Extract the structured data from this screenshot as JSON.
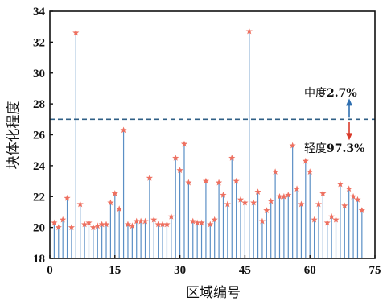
{
  "chart_data": {
    "type": "scatter",
    "style": "stem",
    "xlabel": "区域编号",
    "ylabel": "块体化程度",
    "xlim": [
      0,
      75
    ],
    "ylim": [
      18,
      34
    ],
    "xticks": [
      0,
      15,
      30,
      45,
      60,
      75
    ],
    "yticks": [
      18,
      20,
      22,
      24,
      26,
      28,
      30,
      32,
      34
    ],
    "grid": false,
    "threshold": 27.0,
    "marker": "star",
    "colors": {
      "stem": "#5b8fc5",
      "marker": "#ee7060",
      "threshold": "#2f5f86",
      "arrow_up": "#2f6fb0",
      "arrow_down": "#d93a2a"
    },
    "annotations": {
      "upper": {
        "prefix": "中度",
        "value": "2.7%"
      },
      "lower": {
        "prefix": "轻度",
        "value": "97.3%"
      }
    },
    "x": [
      1,
      2,
      3,
      4,
      5,
      6,
      7,
      8,
      9,
      10,
      11,
      12,
      13,
      14,
      15,
      16,
      17,
      18,
      19,
      20,
      21,
      22,
      23,
      24,
      25,
      26,
      27,
      28,
      29,
      30,
      31,
      32,
      33,
      34,
      35,
      36,
      37,
      38,
      39,
      40,
      41,
      42,
      43,
      44,
      45,
      46,
      47,
      48,
      49,
      50,
      51,
      52,
      53,
      54,
      55,
      56,
      57,
      58,
      59,
      60,
      61,
      62,
      63,
      64,
      65,
      66,
      67,
      68,
      69,
      70,
      71,
      72
    ],
    "y": [
      20.3,
      20.0,
      20.5,
      21.9,
      20.0,
      32.6,
      21.5,
      20.2,
      20.3,
      20.0,
      20.1,
      20.2,
      20.2,
      21.6,
      22.2,
      21.2,
      26.3,
      20.2,
      20.1,
      20.4,
      20.4,
      20.4,
      23.2,
      20.5,
      20.2,
      20.2,
      20.2,
      20.7,
      24.5,
      23.7,
      25.4,
      22.9,
      20.4,
      20.3,
      20.3,
      23.0,
      20.2,
      20.5,
      22.9,
      22.1,
      21.5,
      24.5,
      23.0,
      21.8,
      21.6,
      32.7,
      21.6,
      22.3,
      20.4,
      21.1,
      21.7,
      23.6,
      22.0,
      22.0,
      22.1,
      25.3,
      22.5,
      21.5,
      24.3,
      23.6,
      20.5,
      21.5,
      22.2,
      20.3,
      20.7,
      20.5,
      22.8,
      21.4,
      22.5,
      22.0,
      21.8,
      21.1
    ]
  }
}
